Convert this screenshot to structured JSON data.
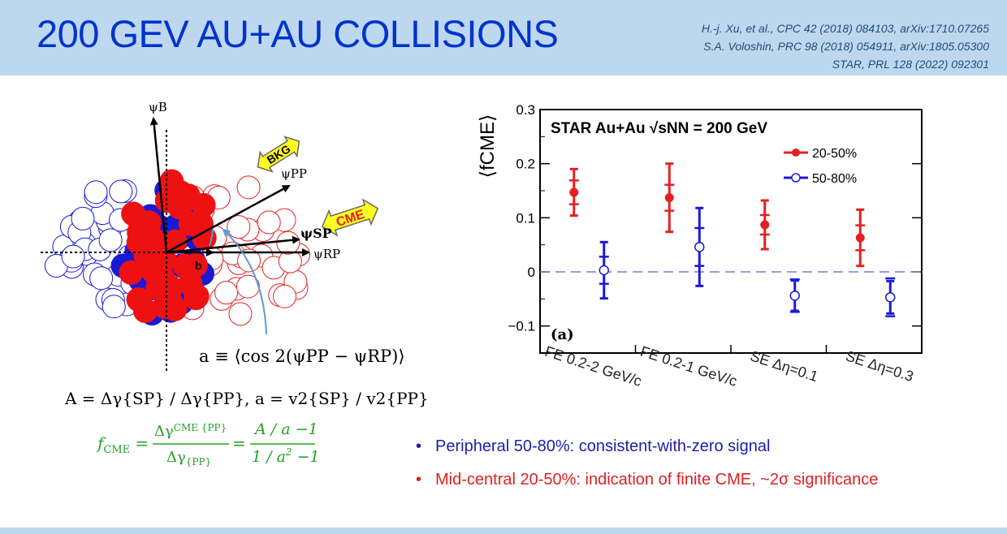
{
  "slide": {
    "title": "200 GEV AU+AU COLLISIONS",
    "references": [
      "H.-j. Xu, et al., CPC 42 (2018) 084103, arXiv:1710.07265",
      "S.A. Voloshin, PRC 98 (2018) 054911, arXiv:1805.05300",
      "STAR, PRL 128 (2022) 092301"
    ],
    "bullets": [
      {
        "text": "Peripheral 50-80%: consistent-with-zero signal",
        "color": "#1b1fa8"
      },
      {
        "text": "Mid-central 20-50%: indication of finite CME, ~2σ significance",
        "color": "#e02020"
      }
    ]
  },
  "diagram": {
    "psi_b": "ψB",
    "psi_pp": "ψPP",
    "psi_sp": "ψSP",
    "psi_rp": "ψRP",
    "b_label": "b",
    "bkg_label": "BKG",
    "cme_label": "CME",
    "eq_a": "a ≡ ⟨cos 2(ψPP − ψRP)⟩",
    "eq_A": "A = Δγ{SP} / Δγ{PP},  a = v2{SP} / v2{PP}",
    "eq_f": "fCME = ΔγCME{PP} / Δγ{PP} = A/a − 1 / 1/a² − 1"
  },
  "colors": {
    "header_bg": "#bdd7ee",
    "title": "#0033cc",
    "red": "#e52020",
    "blue": "#1a1ad6",
    "green": "#22a022"
  },
  "chart_data": {
    "type": "scatter",
    "title": "STAR Au+Au √sNN = 200 GeV",
    "panel_label": "(a)",
    "ylabel": "⟨fCME⟩",
    "ylim": [
      -0.15,
      0.3
    ],
    "yticks": [
      -0.1,
      0,
      0.1,
      0.2,
      0.3
    ],
    "ytick_labels": [
      "−0.1",
      "0",
      "0.1",
      "0.2",
      "0.3"
    ],
    "categories": [
      "FE 0.2-2 GeV/c",
      "FE 0.2-1 GeV/c",
      "SE Δη=0.1",
      "SE Δη=0.3"
    ],
    "legend_position": "top-right",
    "series": [
      {
        "name": "20-50%",
        "color": "#e52020",
        "marker": "filled-circle",
        "values": [
          0.147,
          0.137,
          0.087,
          0.063
        ],
        "stat_err": [
          0.022,
          0.024,
          0.018,
          0.023
        ],
        "sys_err": [
          0.043,
          0.063,
          0.045,
          0.052
        ]
      },
      {
        "name": "50-80%",
        "color": "#1a1ad6",
        "marker": "open-circle",
        "values": [
          0.003,
          0.046,
          -0.044,
          -0.047
        ],
        "stat_err": [
          0.025,
          0.035,
          0.03,
          0.035
        ],
        "sys_err": [
          0.052,
          0.072,
          0.028,
          0.03
        ]
      }
    ]
  }
}
